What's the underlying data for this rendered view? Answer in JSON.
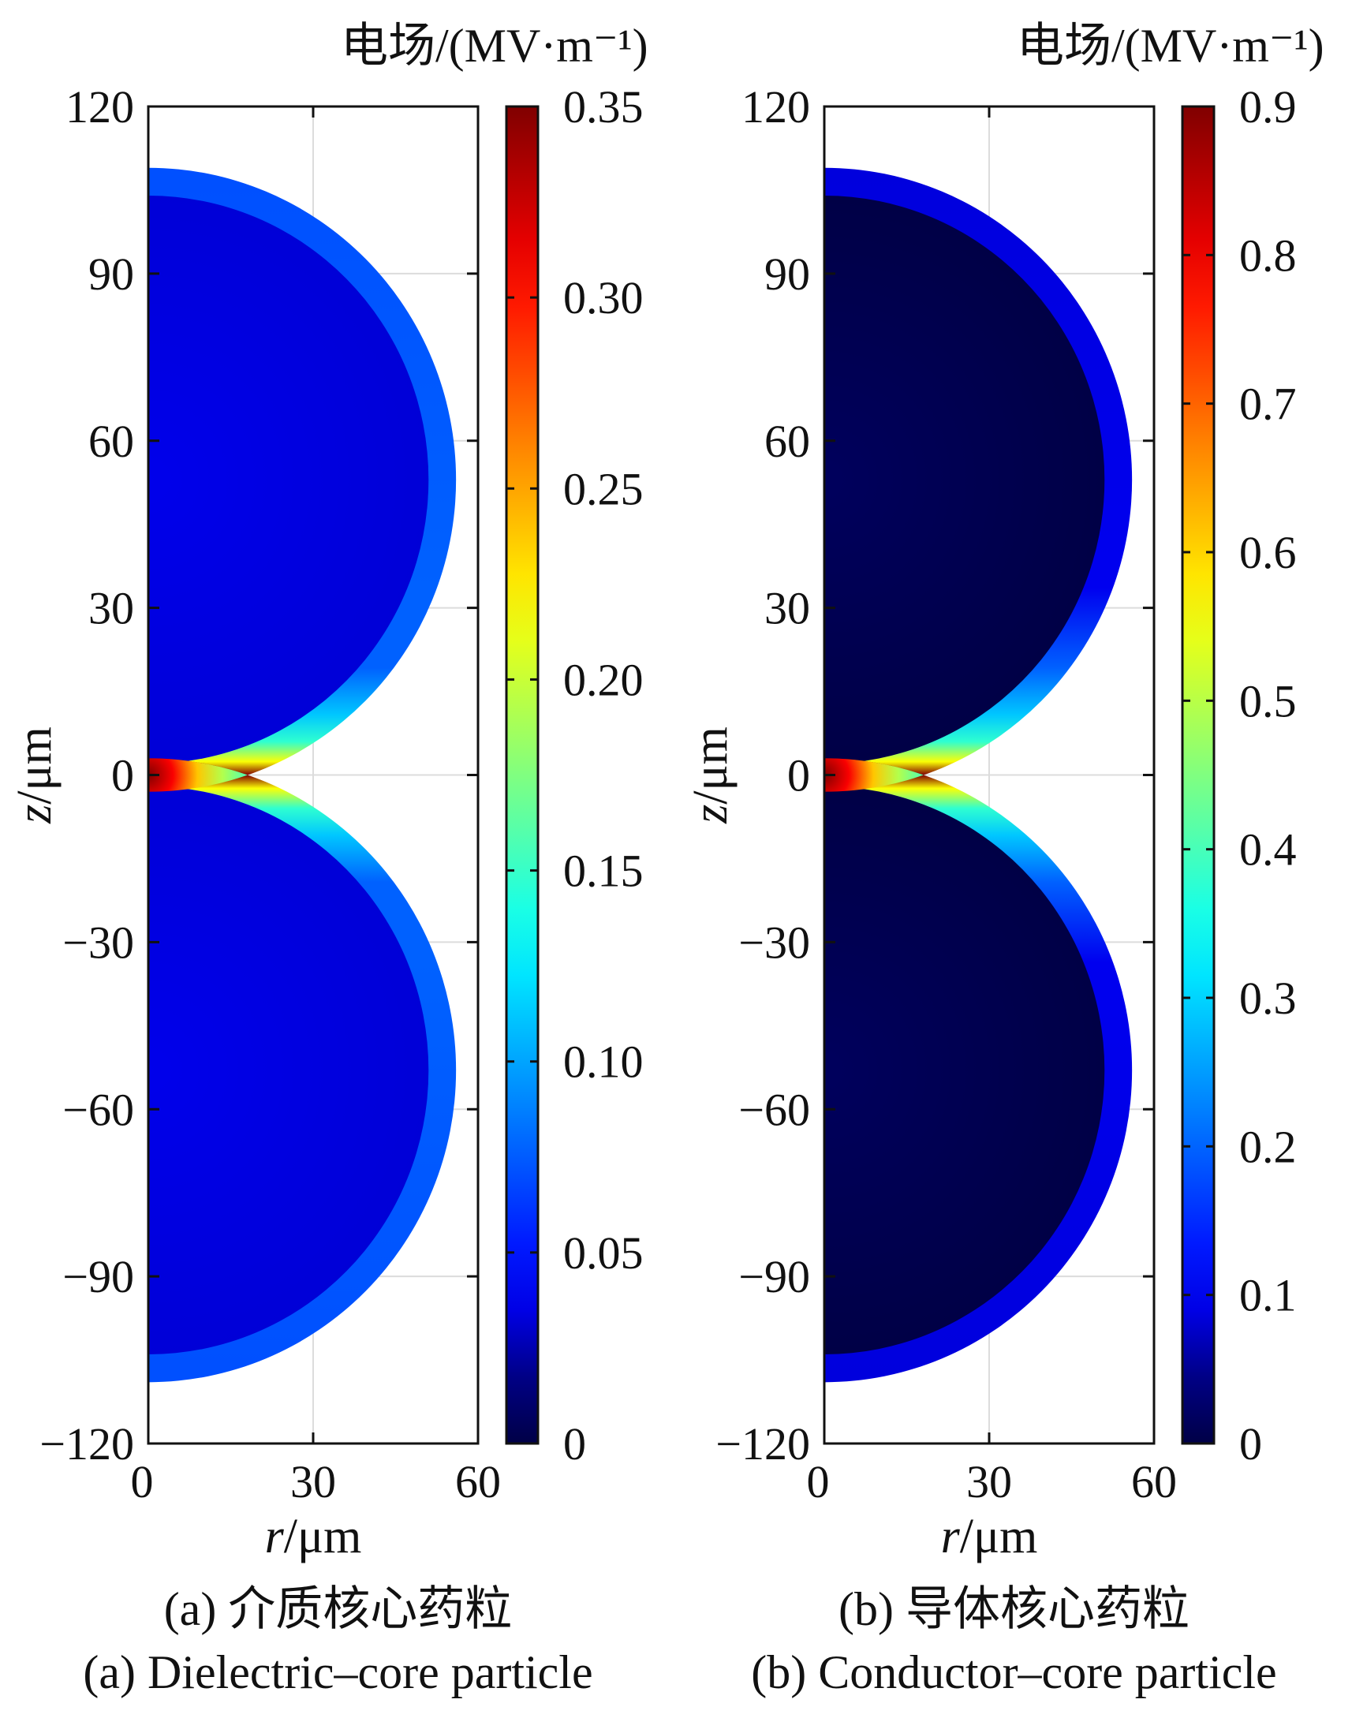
{
  "chart_data": [
    {
      "type": "heatmap",
      "panel": "a",
      "colorbar_title": "电场/(MV·m⁻¹)",
      "xlabel_var": "r",
      "xlabel_unit": "/μm",
      "ylabel_var": "z",
      "ylabel_unit": "/μm",
      "xlim": [
        0,
        60
      ],
      "ylim": [
        -120,
        120
      ],
      "xticks": [
        "0",
        "30",
        "60"
      ],
      "yticks": [
        "120",
        "90",
        "60",
        "30",
        "0",
        "−30",
        "−60",
        "−90",
        "−120"
      ],
      "yvalues": [
        120,
        90,
        60,
        30,
        0,
        -30,
        -60,
        -90,
        -120
      ],
      "colorbar_range": [
        0,
        0.35
      ],
      "colorbar_ticks": [
        "0.35",
        "0.30",
        "0.25",
        "0.20",
        "0.15",
        "0.10",
        "0.05",
        "0"
      ],
      "colorbar_values": [
        0.35,
        0.3,
        0.25,
        0.2,
        0.15,
        0.1,
        0.05,
        0
      ],
      "colormap": "jet",
      "grid": true,
      "particles": [
        {
          "center_z": 53,
          "core_radius": 51,
          "shell_outer_radius": 56
        },
        {
          "center_z": -53,
          "core_radius": 51,
          "shell_outer_radius": 56
        }
      ],
      "core_field_level": 0.03,
      "shell_field_level": 0.07,
      "gap_peak_field": 0.35,
      "caption_zh": "(a) 介质核心药粒",
      "caption_en": "(a) Dielectric–core particle"
    },
    {
      "type": "heatmap",
      "panel": "b",
      "colorbar_title": "电场/(MV·m⁻¹)",
      "xlabel_var": "r",
      "xlabel_unit": "/μm",
      "ylabel_var": "z",
      "ylabel_unit": "/μm",
      "xlim": [
        0,
        60
      ],
      "ylim": [
        -120,
        120
      ],
      "xticks": [
        "0",
        "30",
        "60"
      ],
      "yticks": [
        "120",
        "90",
        "60",
        "30",
        "0",
        "−30",
        "−60",
        "−90",
        "−120"
      ],
      "yvalues": [
        120,
        90,
        60,
        30,
        0,
        -30,
        -60,
        -90,
        -120
      ],
      "colorbar_range": [
        0,
        0.9
      ],
      "colorbar_ticks": [
        "0.9",
        "0.8",
        "0.7",
        "0.6",
        "0.5",
        "0.4",
        "0.3",
        "0.2",
        "0.1",
        "0"
      ],
      "colorbar_values": [
        0.9,
        0.8,
        0.7,
        0.6,
        0.5,
        0.4,
        0.3,
        0.2,
        0.1,
        0
      ],
      "colormap": "jet",
      "grid": true,
      "particles": [
        {
          "center_z": 53,
          "core_radius": 51,
          "shell_outer_radius": 56
        },
        {
          "center_z": -53,
          "core_radius": 51,
          "shell_outer_radius": 56
        }
      ],
      "core_field_level": 0.0,
      "shell_field_level": 0.08,
      "gap_peak_field": 0.9,
      "caption_zh": "(b) 导体核心药粒",
      "caption_en": "(b) Conductor–core particle"
    }
  ]
}
